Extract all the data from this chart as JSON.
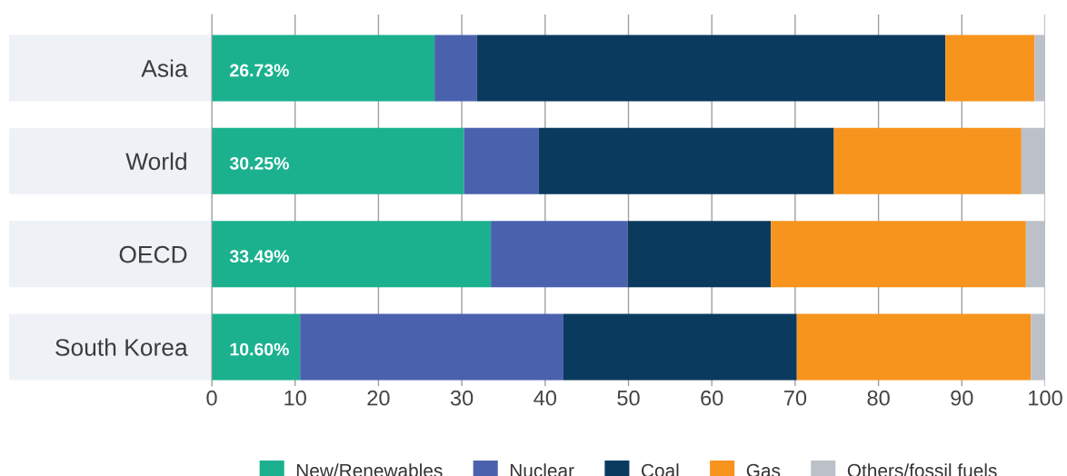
{
  "chart_data": {
    "type": "bar",
    "orientation": "horizontal",
    "stacked": true,
    "categories": [
      "Asia",
      "World",
      "OECD",
      "South Korea"
    ],
    "series": [
      {
        "name": "New/Renewables",
        "color": "#1bb18f",
        "values": [
          26.73,
          30.25,
          33.49,
          10.6
        ],
        "value_labels": [
          "26.73%",
          "30.25%",
          "33.49%",
          "10.60%"
        ]
      },
      {
        "name": "Nuclear",
        "color": "#4a62ae",
        "values": [
          5.1,
          9.0,
          16.4,
          31.6
        ]
      },
      {
        "name": "Coal",
        "color": "#0b3a5f",
        "values": [
          56.2,
          35.4,
          17.2,
          28.0
        ]
      },
      {
        "name": "Gas",
        "color": "#f7941e",
        "values": [
          10.7,
          22.5,
          30.6,
          28.1
        ]
      },
      {
        "name": "Others/fossil fuels",
        "color": "#bcc1c9",
        "values": [
          1.2,
          2.8,
          2.3,
          1.7
        ]
      }
    ],
    "xlim": [
      0,
      100
    ],
    "xticks": [
      0,
      10,
      20,
      30,
      40,
      50,
      60,
      70,
      80,
      90,
      100
    ],
    "grid": "x",
    "legend": "bottom"
  }
}
